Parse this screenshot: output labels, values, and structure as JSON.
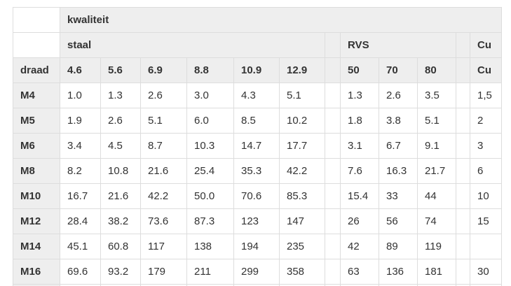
{
  "style": {
    "background": "#ffffff",
    "header_bg": "#eeeeee",
    "border_color": "#dddddd",
    "text_color": "#333333"
  },
  "chart_data": {
    "type": "table",
    "title": "kwaliteit",
    "row_header": "draad",
    "column_groups": [
      {
        "label": "staal",
        "columns": [
          "4.6",
          "5.6",
          "6.9",
          "8.8",
          "10.9",
          "12.9"
        ]
      },
      {
        "label": "RVS",
        "columns": [
          "50",
          "70",
          "80"
        ]
      },
      {
        "label": "Cu",
        "columns": [
          "Cu"
        ]
      }
    ],
    "rows": [
      {
        "draad": "M4",
        "staal": [
          "1.0",
          "1.3",
          "2.6",
          "3.0",
          "4.3",
          "5.1"
        ],
        "rvs": [
          "1.3",
          "2.6",
          "3.5"
        ],
        "cu": "1,5"
      },
      {
        "draad": "M5",
        "staal": [
          "1.9",
          "2.6",
          "5.1",
          "6.0",
          "8.5",
          "10.2"
        ],
        "rvs": [
          "1.8",
          "3.8",
          "5.1"
        ],
        "cu": "2"
      },
      {
        "draad": "M6",
        "staal": [
          "3.4",
          "4.5",
          "8.7",
          "10.3",
          "14.7",
          "17.7"
        ],
        "rvs": [
          "3.1",
          "6.7",
          "9.1"
        ],
        "cu": "3"
      },
      {
        "draad": "M8",
        "staal": [
          "8.2",
          "10.8",
          "21.6",
          "25.4",
          "35.3",
          "42.2"
        ],
        "rvs": [
          "7.6",
          "16.3",
          "21.7"
        ],
        "cu": "6"
      },
      {
        "draad": "M10",
        "staal": [
          "16.7",
          "21.6",
          "42.2",
          "50.0",
          "70.6",
          "85.3"
        ],
        "rvs": [
          "15.4",
          "33",
          "44"
        ],
        "cu": "10"
      },
      {
        "draad": "M12",
        "staal": [
          "28.4",
          "38.2",
          "73.6",
          "87.3",
          "123",
          "147"
        ],
        "rvs": [
          "26",
          "56",
          "74"
        ],
        "cu": "15"
      },
      {
        "draad": "M14",
        "staal": [
          "45.1",
          "60.8",
          "117",
          "138",
          "194",
          "235"
        ],
        "rvs": [
          "42",
          "89",
          "119"
        ],
        "cu": ""
      },
      {
        "draad": "M16",
        "staal": [
          "69.6",
          "93.2",
          "179",
          "211",
          "299",
          "358"
        ],
        "rvs": [
          "63",
          "136",
          "181"
        ],
        "cu": "30"
      }
    ],
    "clipped_partial_row": {
      "draad": "",
      "staal": [
        "",
        "",
        "",
        "",
        "",
        ""
      ],
      "rvs": [
        "",
        "",
        ""
      ],
      "cu": ""
    },
    "layout_hints": {
      "spacer_columns_after": [
        "12.9",
        "80"
      ],
      "bottom_row_clipped_by_viewport": true
    }
  }
}
